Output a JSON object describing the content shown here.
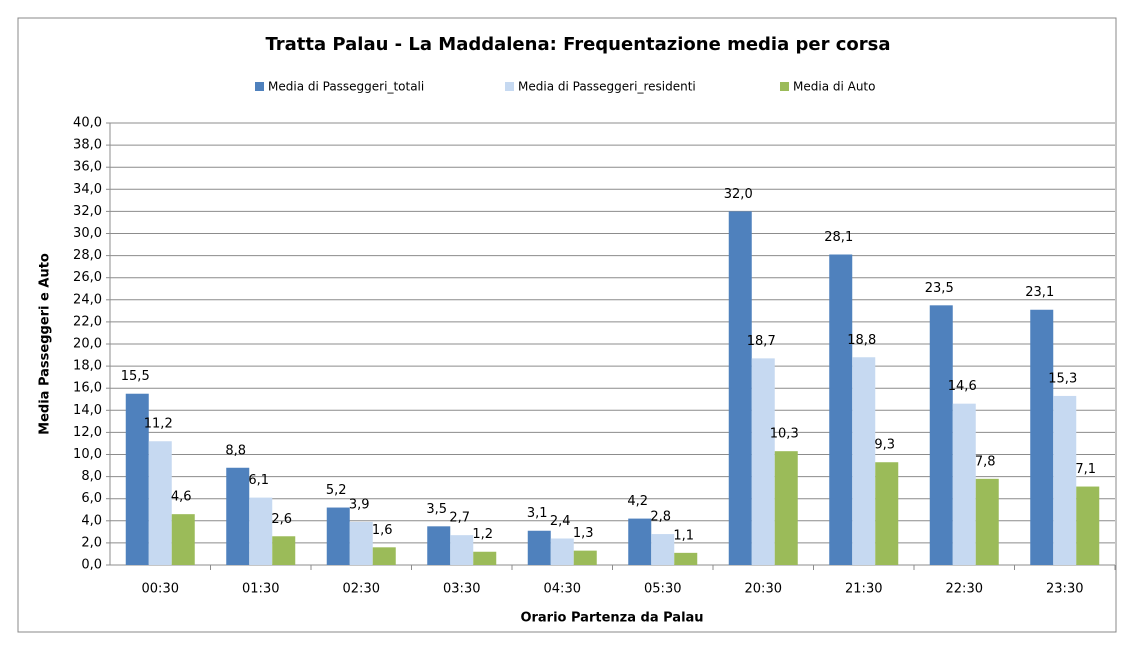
{
  "chart_data": {
    "type": "bar",
    "title": "Tratta Palau  - La Maddalena: Frequentazione media   per corsa",
    "x_label": "Orario Partenza da Palau",
    "y_label": "Media Passeggeri e Auto",
    "categories": [
      "00:30",
      "01:30",
      "02:30",
      "03:30",
      "04:30",
      "05:30",
      "20:30",
      "21:30",
      "22:30",
      "23:30"
    ],
    "series": [
      {
        "name": "Media di Passeggeri_totali",
        "color": "#4f81bd",
        "values": [
          15.5,
          8.8,
          5.2,
          3.5,
          3.1,
          4.2,
          32.0,
          28.1,
          23.5,
          23.1
        ],
        "value_labels": [
          "15,5",
          "8,8",
          "5,2",
          "3,5",
          "3,1",
          "4,2",
          "32,0",
          "28,1",
          "23,5",
          "23,1"
        ]
      },
      {
        "name": "Media di Passeggeri_residenti",
        "color": "#c6d9f1",
        "values": [
          11.2,
          6.1,
          3.9,
          2.7,
          2.4,
          2.8,
          18.7,
          18.8,
          14.6,
          15.3
        ],
        "value_labels": [
          "11,2",
          "6,1",
          "3,9",
          "2,7",
          "2,4",
          "2,8",
          "18,7",
          "18,8",
          "14,6",
          "15,3"
        ]
      },
      {
        "name": "Media di Auto",
        "color": "#9bbb59",
        "values": [
          4.6,
          2.6,
          1.6,
          1.2,
          1.3,
          1.1,
          10.3,
          9.3,
          7.8,
          7.1
        ],
        "value_labels": [
          "4,6",
          "2,6",
          "1,6",
          "1,2",
          "1,3",
          "1,1",
          "10,3",
          "9,3",
          "7,8",
          "7,1"
        ]
      }
    ],
    "ylim": [
      0,
      40
    ],
    "yticks": [
      {
        "value": 0,
        "label": "0,0"
      },
      {
        "value": 2,
        "label": "2,0"
      },
      {
        "value": 4,
        "label": "4,0"
      },
      {
        "value": 6,
        "label": "6,0"
      },
      {
        "value": 8,
        "label": "8,0"
      },
      {
        "value": 10,
        "label": "10,0"
      },
      {
        "value": 12,
        "label": "12,0"
      },
      {
        "value": 14,
        "label": "14,0"
      },
      {
        "value": 16,
        "label": "16,0"
      },
      {
        "value": 18,
        "label": "18,0"
      },
      {
        "value": 20,
        "label": "20,0"
      },
      {
        "value": 22,
        "label": "22,0"
      },
      {
        "value": 24,
        "label": "24,0"
      },
      {
        "value": 26,
        "label": "26,0"
      },
      {
        "value": 28,
        "label": "28,0"
      },
      {
        "value": 30,
        "label": "30,0"
      },
      {
        "value": 32,
        "label": "32,0"
      },
      {
        "value": 34,
        "label": "34,0"
      },
      {
        "value": 36,
        "label": "36,0"
      },
      {
        "value": 38,
        "label": "38,0"
      },
      {
        "value": 40,
        "label": "40,0"
      }
    ],
    "grid": true,
    "legend": "top"
  }
}
